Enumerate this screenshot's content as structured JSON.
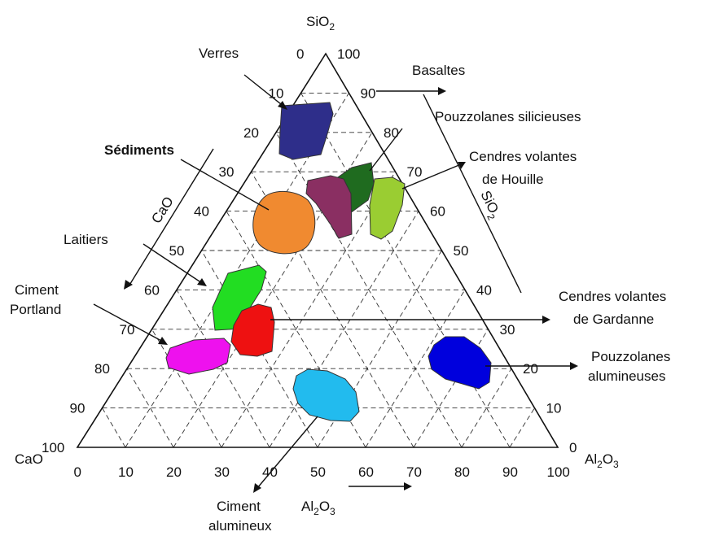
{
  "vertices": {
    "top": "SiO",
    "top_sub": "2",
    "left": "CaO",
    "right": "Al",
    "right_sub": "2",
    "right_tail": "O",
    "right_tail_sub": "3"
  },
  "axes": {
    "bottom_title": "Al",
    "bottom_title_sub": "2",
    "bottom_title_tail": "O",
    "bottom_title_tail_sub": "3",
    "left_title": "CaO",
    "right_title": "SiO",
    "right_title_sub": "2"
  },
  "left_ticks": [
    "0",
    "10",
    "20",
    "30",
    "40",
    "50",
    "60",
    "70",
    "80",
    "90",
    "100"
  ],
  "right_ticks": [
    "100",
    "90",
    "80",
    "70",
    "60",
    "50",
    "40",
    "30",
    "20",
    "10",
    "0"
  ],
  "bottom_ticks": [
    "0",
    "10",
    "20",
    "30",
    "40",
    "50",
    "60",
    "70",
    "80",
    "90",
    "100"
  ],
  "labels": {
    "verres": "Verres",
    "basaltes": "Basaltes",
    "pouzzolanes_silicieuses": "Pouzzolanes silicieuses",
    "sediments": "Sédiments",
    "cendres_houille_1": "Cendres volantes",
    "cendres_houille_2": "de Houille",
    "laitiers": "Laitiers",
    "ciment_portland_1": "Ciment",
    "ciment_portland_2": "Portland",
    "cendres_gardanne_1": "Cendres volantes",
    "cendres_gardanne_2": "de Gardanne",
    "pouzzolanes_alumineuses_1": "Pouzzolanes",
    "pouzzolanes_alumineuses_2": "alumineuses",
    "ciment_alumineux_1": "Ciment",
    "ciment_alumineux_2": "alumineux"
  },
  "colors": {
    "verres": "#2e2e8a",
    "sediments": "#f08a30",
    "basaltes": "#8a2f62",
    "pouzzolanes_silicieuses": "#1f6b1f",
    "cendres_houille": "#9acd32",
    "laitiers": "#22dd22",
    "cendres_gardanne": "#ee1111",
    "ciment_portland": "#ee11ee",
    "pouzzolanes_alumineuses": "#0000dd",
    "ciment_alumineux": "#22bbee",
    "sediments_label": "#f08a30"
  }
}
